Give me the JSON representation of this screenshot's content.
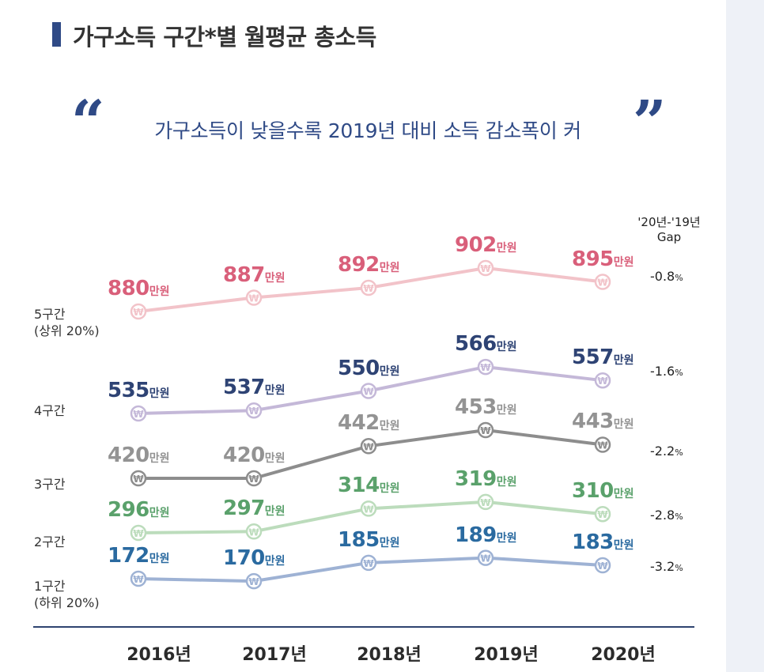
{
  "title": "가구소득 구간*별 월평균 총소득",
  "subtitle": "가구소득이 낮을수록 2019년 대비 소득 감소폭이 커",
  "quote_open": "“",
  "quote_close": "”",
  "gap_header": [
    "'20년-'19년",
    "Gap"
  ],
  "chart_data": {
    "type": "line",
    "title": "가구소득 구간*별 월평균 총소득",
    "categories": [
      "2016년",
      "2017년",
      "2018년",
      "2019년",
      "2020년"
    ],
    "unit": "만원",
    "marker_symbol": "₩",
    "series": [
      {
        "key": "q5",
        "name": "5구간",
        "name_sub": "(상위 20%)",
        "values": [
          880,
          887,
          892,
          902,
          895
        ],
        "gap": "-0.8",
        "color": "#f2c3c9",
        "text_color": "#d95f7a"
      },
      {
        "key": "q4",
        "name": "4구간",
        "name_sub": "",
        "values": [
          535,
          537,
          550,
          566,
          557
        ],
        "gap": "-1.6",
        "color": "#c4b8d8",
        "text_color": "#2e4374"
      },
      {
        "key": "q3",
        "name": "3구간",
        "name_sub": "",
        "values": [
          420,
          420,
          442,
          453,
          443
        ],
        "gap": "-2.2",
        "color": "#8d8d8d",
        "text_color": "#939393"
      },
      {
        "key": "q2",
        "name": "2구간",
        "name_sub": "",
        "values": [
          296,
          297,
          314,
          319,
          310
        ],
        "gap": "-2.8",
        "color": "#bcdcbc",
        "text_color": "#5aa16b"
      },
      {
        "key": "q1",
        "name": "1구간",
        "name_sub": "(하위 20%)",
        "values": [
          172,
          170,
          185,
          189,
          183
        ],
        "gap": "-3.2",
        "color": "#9eb2d4",
        "text_color": "#2a6aa0"
      }
    ],
    "gap_unit": "%",
    "xlabel": "",
    "ylabel": ""
  }
}
